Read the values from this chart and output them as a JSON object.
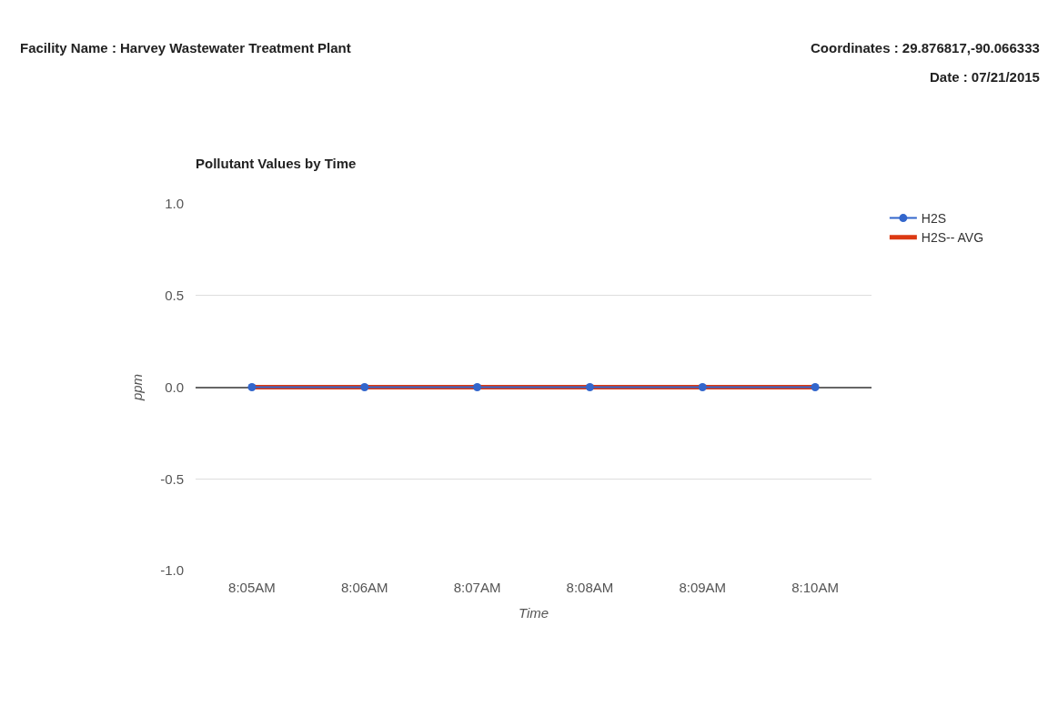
{
  "chart_data": {
    "type": "line",
    "title": "Pollutant Values by Time",
    "xlabel": "Time",
    "ylabel": "ppm",
    "annotations": [
      "Facility Name : Harvey Wastewater Treatment Plant",
      "Coordinates : 29.876817,-90.066333",
      "Date : 07/21/2015"
    ],
    "categories": [
      "8:05AM",
      "8:06AM",
      "8:07AM",
      "8:08AM",
      "8:09AM",
      "8:10AM"
    ],
    "series": [
      {
        "name": "H2S",
        "color": "#3366cc",
        "values": [
          0,
          0,
          0,
          0,
          0,
          0
        ],
        "marker": "circle"
      },
      {
        "name": "H2S-- AVG",
        "color": "#dc3912",
        "values": [
          0,
          0,
          0,
          0,
          0,
          0
        ],
        "marker": "none"
      }
    ],
    "ylim": [
      -1,
      1
    ],
    "yticks": [
      {
        "value": -1,
        "label": "-1.0"
      },
      {
        "value": -0.5,
        "label": "-0.5"
      },
      {
        "value": 0,
        "label": "0.0"
      },
      {
        "value": 0.5,
        "label": "0.5"
      },
      {
        "value": 1,
        "label": "1.0"
      }
    ],
    "grid": "y",
    "legend": "right",
    "line_style": "solid"
  }
}
